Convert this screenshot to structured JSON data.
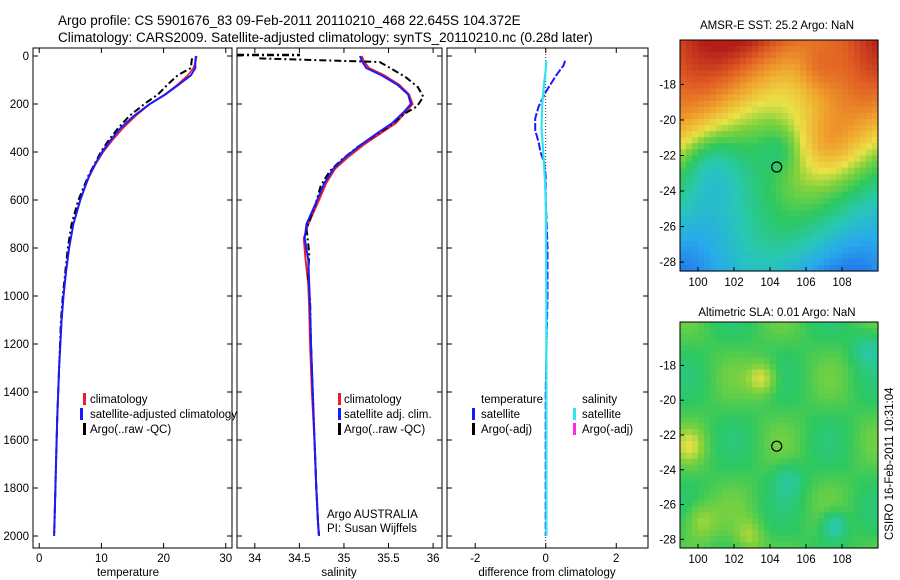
{
  "header": {
    "line1": "Argo profile: CS 5901676_83 09-Feb-2011 20110210_468 22.645S 104.372E",
    "line2": "Climatology: CARS2009. Satellite-adjusted climatology: synTS_20110210.nc (0.28d later)"
  },
  "colors": {
    "climatology": "#e8202a",
    "satellite": "#1a1aff",
    "argo": "#000000",
    "sal_satellite": "#2ee6f0",
    "sal_argo": "#ff2ce0"
  },
  "chart_data": [
    {
      "type": "line",
      "name": "temperature-profile",
      "xlabel": "temperature",
      "xlim": [
        -1,
        31
      ],
      "ylim": [
        0,
        2050
      ],
      "yreversed": true,
      "xticks": [
        0,
        10,
        20,
        30
      ],
      "yticks": [
        0,
        200,
        400,
        600,
        800,
        1000,
        1200,
        1400,
        1600,
        1800,
        2000
      ],
      "legend": [
        "climatology",
        "satellite-adjusted climatology",
        "Argo(..raw -QC)"
      ],
      "series": [
        {
          "name": "climatology",
          "x": [
            25.3,
            25.2,
            24.8,
            23.9,
            22.2,
            20.2,
            17.8,
            15.5,
            13.5,
            11.8,
            10.3,
            9.1,
            8.1,
            7.3,
            6.6,
            5.5,
            4.8,
            4.3,
            3.9,
            3.6,
            3.2,
            2.9,
            2.7,
            2.5,
            2.4
          ],
          "y": [
            0,
            20,
            50,
            80,
            120,
            160,
            200,
            250,
            300,
            350,
            400,
            450,
            500,
            550,
            600,
            700,
            800,
            900,
            1000,
            1100,
            1300,
            1500,
            1700,
            1900,
            2000
          ]
        },
        {
          "name": "satellite",
          "x": [
            25.2,
            25.1,
            25.1,
            24.4,
            22.4,
            20.3,
            17.8,
            15.2,
            13.1,
            11.5,
            10.1,
            9.0,
            8.0,
            7.3,
            6.6,
            5.5,
            4.8,
            4.3,
            3.9,
            3.6,
            3.2,
            2.9,
            2.7,
            2.5,
            2.4
          ],
          "y": [
            0,
            20,
            50,
            80,
            120,
            160,
            200,
            250,
            300,
            350,
            400,
            450,
            500,
            550,
            600,
            700,
            800,
            900,
            1000,
            1100,
            1300,
            1500,
            1700,
            1900,
            2000
          ]
        },
        {
          "name": "argo",
          "x": [
            24.6,
            24.5,
            24.4,
            22.3,
            20.6,
            19.1,
            16.9,
            14.5,
            12.7,
            11.2,
            9.9,
            8.9,
            7.9,
            7.1,
            6.3,
            5.2,
            4.6,
            4.2,
            3.8,
            3.5,
            3.2,
            2.9,
            2.7,
            2.5,
            2.4
          ],
          "y": [
            10,
            20,
            50,
            80,
            120,
            160,
            200,
            250,
            300,
            350,
            400,
            450,
            500,
            550,
            600,
            700,
            800,
            900,
            1000,
            1100,
            1300,
            1500,
            1700,
            1900,
            2000
          ]
        }
      ]
    },
    {
      "type": "line",
      "name": "salinity-profile",
      "xlabel": "salinity",
      "xlim": [
        33.8,
        36.1
      ],
      "ylim": [
        0,
        2050
      ],
      "yreversed": true,
      "xticks": [
        34,
        34.5,
        35,
        35.5,
        36
      ],
      "legend": [
        "climatology",
        "satellite adj. clim.",
        "Argo(..raw -QC)"
      ],
      "annotation": [
        "Argo AUSTRALIA",
        "PI: Susan Wijffels"
      ],
      "series": [
        {
          "name": "climatology",
          "x": [
            35.2,
            35.22,
            35.28,
            35.45,
            35.62,
            35.73,
            35.77,
            35.7,
            35.58,
            35.42,
            35.22,
            35.05,
            34.9,
            34.8,
            34.72,
            34.6,
            34.55,
            34.57,
            34.6,
            34.61,
            34.62,
            34.64,
            34.67,
            34.69,
            34.71,
            34.72
          ],
          "y": [
            0,
            20,
            50,
            80,
            120,
            160,
            200,
            230,
            280,
            320,
            370,
            420,
            470,
            530,
            600,
            700,
            760,
            850,
            950,
            1050,
            1200,
            1400,
            1600,
            1800,
            1950,
            2000
          ]
        },
        {
          "name": "satellite",
          "x": [
            35.18,
            35.2,
            35.25,
            35.42,
            35.6,
            35.72,
            35.75,
            35.68,
            35.54,
            35.38,
            35.19,
            35.02,
            34.88,
            34.78,
            34.7,
            34.58,
            34.56,
            34.6,
            34.61,
            34.62,
            34.63,
            34.65,
            34.67,
            34.69,
            34.71,
            34.72
          ],
          "y": [
            0,
            20,
            50,
            80,
            120,
            160,
            200,
            230,
            280,
            320,
            370,
            420,
            470,
            530,
            600,
            700,
            760,
            850,
            950,
            1050,
            1200,
            1400,
            1600,
            1800,
            1950,
            2000
          ]
        },
        {
          "name": "argo",
          "x": [
            34.05,
            35.4,
            35.52,
            35.7,
            35.83,
            35.89,
            35.82,
            35.68,
            35.52,
            35.35,
            35.15,
            34.98,
            34.84,
            34.74,
            34.68,
            34.58,
            34.61,
            34.6,
            34.62,
            34.63,
            34.65,
            34.67,
            34.69,
            34.71,
            34.72
          ],
          "y": [
            10,
            25,
            50,
            90,
            130,
            170,
            210,
            240,
            290,
            330,
            380,
            430,
            480,
            540,
            620,
            720,
            820,
            920,
            1020,
            1200,
            1400,
            1600,
            1800,
            1950,
            2000
          ]
        }
      ]
    },
    {
      "type": "line",
      "name": "difference-profile",
      "xlabel": "difference from climatology",
      "xlim": [
        -2.8,
        2.9
      ],
      "ylim": [
        0,
        2050
      ],
      "yreversed": true,
      "xticks": [
        -2,
        0,
        2
      ],
      "legend_temperature": [
        "temperature",
        "satellite",
        "Argo(-adj)"
      ],
      "legend_salinity": [
        "salinity",
        "satellite",
        "Argo(-adj)"
      ],
      "series": [
        {
          "name": "temperature-satellite",
          "x": [
            0.55,
            0.5,
            0.3,
            0.0,
            -0.2,
            -0.3,
            -0.3,
            -0.2,
            -0.15,
            -0.05,
            0.0,
            0.0,
            0.05,
            0.05,
            0.0,
            0.0,
            0.0
          ],
          "y": [
            20,
            40,
            80,
            150,
            210,
            260,
            310,
            360,
            400,
            440,
            500,
            600,
            800,
            1000,
            1400,
            1800,
            2000
          ]
        },
        {
          "name": "salinity-satellite",
          "x": [
            0.02,
            0.0,
            -0.05,
            -0.1,
            -0.12,
            -0.08,
            -0.05,
            -0.02,
            0.0,
            0.01,
            0.02,
            0.02,
            0.02,
            0.02
          ],
          "y": [
            20,
            60,
            120,
            200,
            300,
            380,
            450,
            520,
            600,
            800,
            1000,
            1400,
            1800,
            2000
          ]
        }
      ]
    },
    {
      "type": "heatmap",
      "name": "amsre-sst-map",
      "title": "AMSR-E SST: 25.2 Argo: NaN",
      "xlim": [
        99,
        110
      ],
      "ylim": [
        -28.5,
        -15.5
      ],
      "xticks": [
        100,
        102,
        104,
        106,
        108
      ],
      "yticks": [
        -18,
        -20,
        -22,
        -24,
        -26,
        -28
      ],
      "marker": [
        104.372,
        -22.645
      ]
    },
    {
      "type": "heatmap",
      "name": "altimetric-sla-map",
      "title": "Altimetric SLA: 0.01 Argo: NaN",
      "xlim": [
        99,
        110
      ],
      "ylim": [
        -28.5,
        -15.5
      ],
      "xticks": [
        100,
        102,
        104,
        106,
        108
      ],
      "yticks": [
        -18,
        -20,
        -22,
        -24,
        -26,
        -28
      ],
      "marker": [
        104.372,
        -22.645
      ]
    }
  ],
  "footer": {
    "stamp": "CSIRO 16-Feb-2011 10:31:04"
  }
}
